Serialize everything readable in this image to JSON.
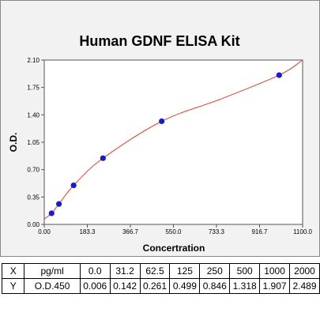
{
  "colors": {
    "curve": "#e8402e",
    "points": "#1a1acf",
    "panel": "#f2f2f2",
    "plot_bg": "#ffffff"
  },
  "chart_data": {
    "type": "scatter",
    "title": "Human GDNF ELISA Kit",
    "xlabel": "Concertration",
    "ylabel": "O.D.",
    "xlim": [
      0,
      1100
    ],
    "ylim": [
      0,
      2.1
    ],
    "x_ticks": [
      "0.00",
      "183.3",
      "366.7",
      "550.0",
      "733.3",
      "916.7",
      "1100.0"
    ],
    "y_ticks": [
      "0.00",
      "0.35",
      "0.70",
      "1.05",
      "1.40",
      "1.75",
      "2.10"
    ],
    "grid": false,
    "series": [
      {
        "x": [
          31.2,
          62.5,
          125,
          250,
          500,
          1000
        ],
        "y": [
          0.142,
          0.261,
          0.499,
          0.846,
          1.318,
          1.907
        ]
      }
    ],
    "fit_curve": {
      "x": [
        0,
        31.2,
        62.5,
        125,
        250,
        500,
        750,
        1000,
        1100
      ],
      "y": [
        0.07,
        0.142,
        0.261,
        0.499,
        0.846,
        1.318,
        1.6,
        1.907,
        2.1
      ]
    }
  },
  "table": {
    "rows": [
      [
        "X",
        "pg/ml",
        "0.0",
        "31.2",
        "62.5",
        "125",
        "250",
        "500",
        "1000",
        "2000"
      ],
      [
        "Y",
        "O.D.450",
        "0.006",
        "0.142",
        "0.261",
        "0.499",
        "0.846",
        "1.318",
        "1.907",
        "2.489"
      ]
    ]
  }
}
